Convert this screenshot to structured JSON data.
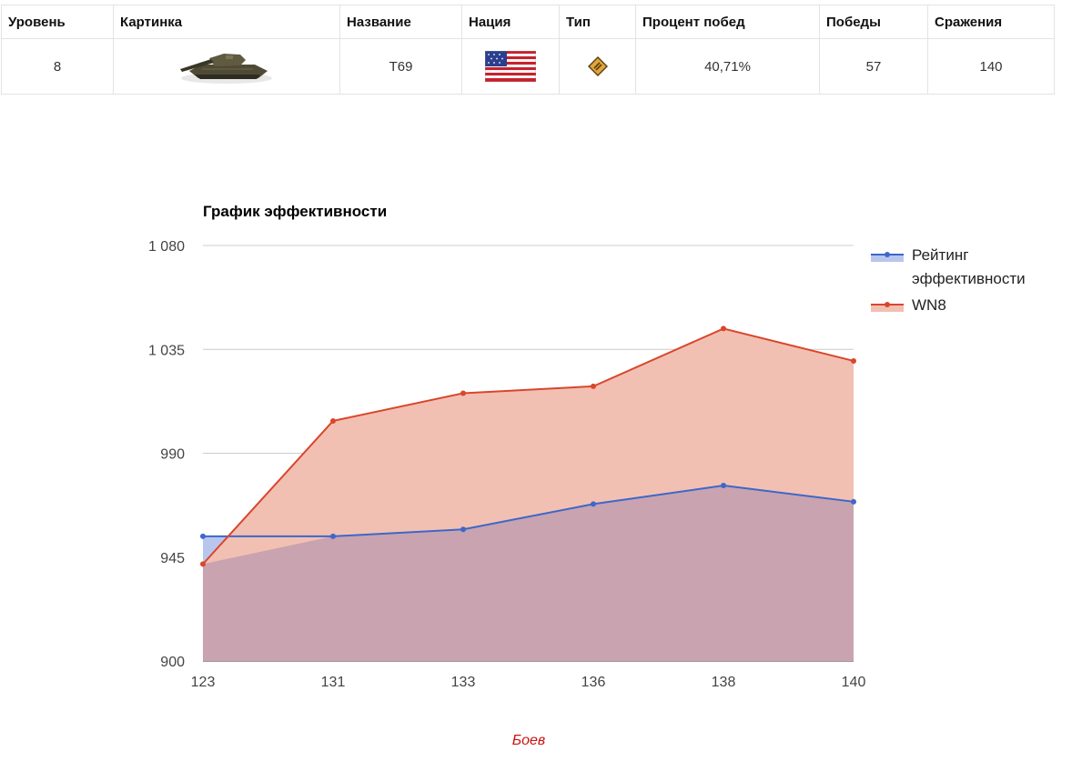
{
  "table": {
    "headers": [
      "Уровень",
      "Картинка",
      "Название",
      "Нация",
      "Тип",
      "Процент побед",
      "Победы",
      "Сражения"
    ],
    "row": {
      "level": "8",
      "image_icon": "tank-image",
      "name": "T69",
      "nation_icon": "usa-flag-icon",
      "type_icon": "medium-tank-icon",
      "win_rate": "40,71%",
      "wins": "57",
      "battles": "140"
    }
  },
  "colors": {
    "rating": "#3d67c9",
    "wn8": "#d9462c",
    "rating_fill": "#b8c6ee",
    "wn8_fill": "#f2c0b2",
    "overlap_fill": "#c9a3b0",
    "xlabel": "#cc1111"
  },
  "chart_data": {
    "type": "area",
    "title": "График эффективности",
    "xlabel": "Боев",
    "ylabel": "",
    "x": [
      "123",
      "131",
      "133",
      "136",
      "138",
      "140"
    ],
    "ylim": [
      900,
      1080
    ],
    "yticks": [
      900,
      945,
      990,
      1035,
      1080
    ],
    "ytick_labels": [
      "900",
      "945",
      "990",
      "1 035",
      "1 080"
    ],
    "grid": true,
    "legend_position": "right",
    "series": [
      {
        "name": "Рейтинг эффективности",
        "legend_lines": [
          "Рейтинг",
          "эффективности"
        ],
        "values": [
          954,
          954,
          957,
          968,
          976,
          969
        ]
      },
      {
        "name": "WN8",
        "legend_lines": [
          "WN8"
        ],
        "values": [
          942,
          1004,
          1016,
          1019,
          1044,
          1030
        ]
      }
    ]
  }
}
